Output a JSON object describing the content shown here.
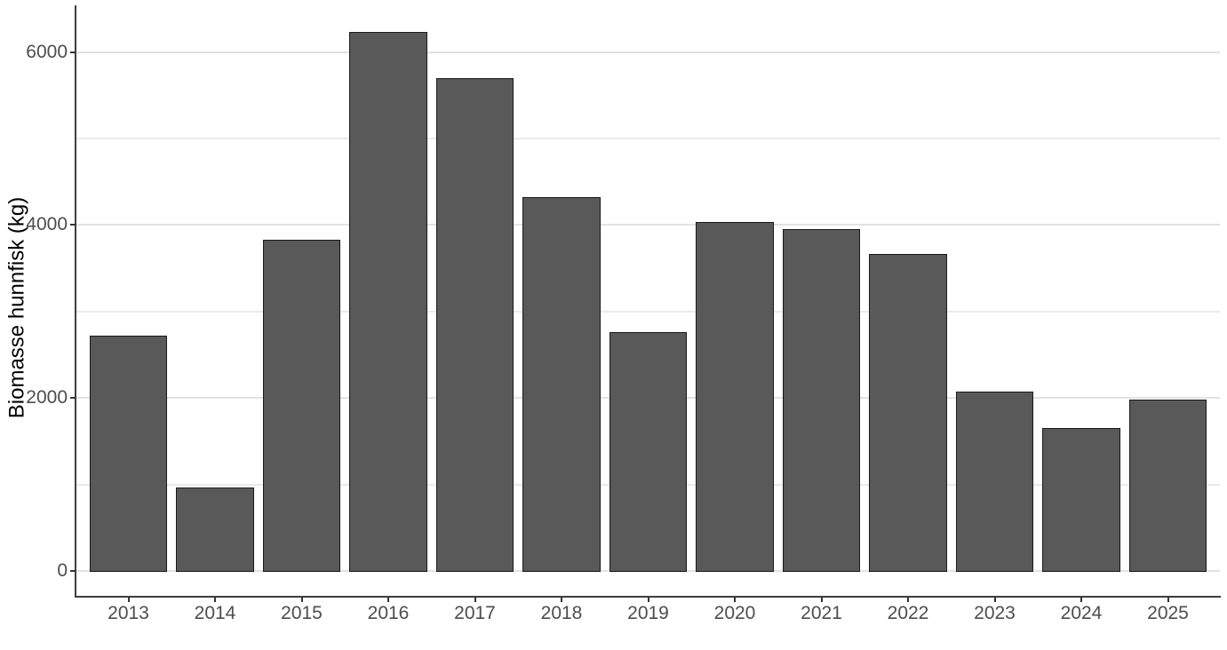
{
  "chart_data": {
    "type": "bar",
    "title": "",
    "ylabel": "Biomasse hunnfisk (kg)",
    "xlabel": "",
    "categories": [
      "2013",
      "2014",
      "2015",
      "2016",
      "2017",
      "2018",
      "2019",
      "2020",
      "2021",
      "2022",
      "2023",
      "2024",
      "2025"
    ],
    "values": [
      2720,
      970,
      3830,
      6230,
      5700,
      4320,
      2760,
      4030,
      3950,
      3670,
      2070,
      1650,
      1980
    ],
    "ylim": [
      0,
      6530
    ],
    "yticks": [
      0,
      2000,
      4000,
      6000
    ],
    "ytick_labels": [
      "0",
      "2000",
      "4000",
      "6000"
    ],
    "grid_major_values": [
      0,
      2000,
      4000,
      6000
    ],
    "grid_minor_values": [
      1000,
      3000,
      5000
    ],
    "legend": "none",
    "grid": "horizontal",
    "colors": {
      "bar_fill": "#595959",
      "bar_border": "#1a1a1a",
      "axis_line": "#3d3d3d",
      "tick_mark": "#333333",
      "tick_label": "#4d4d4d",
      "grid_major": "#e2e2e2",
      "grid_minor": "#eaeaea",
      "background": "#ffffff"
    }
  }
}
